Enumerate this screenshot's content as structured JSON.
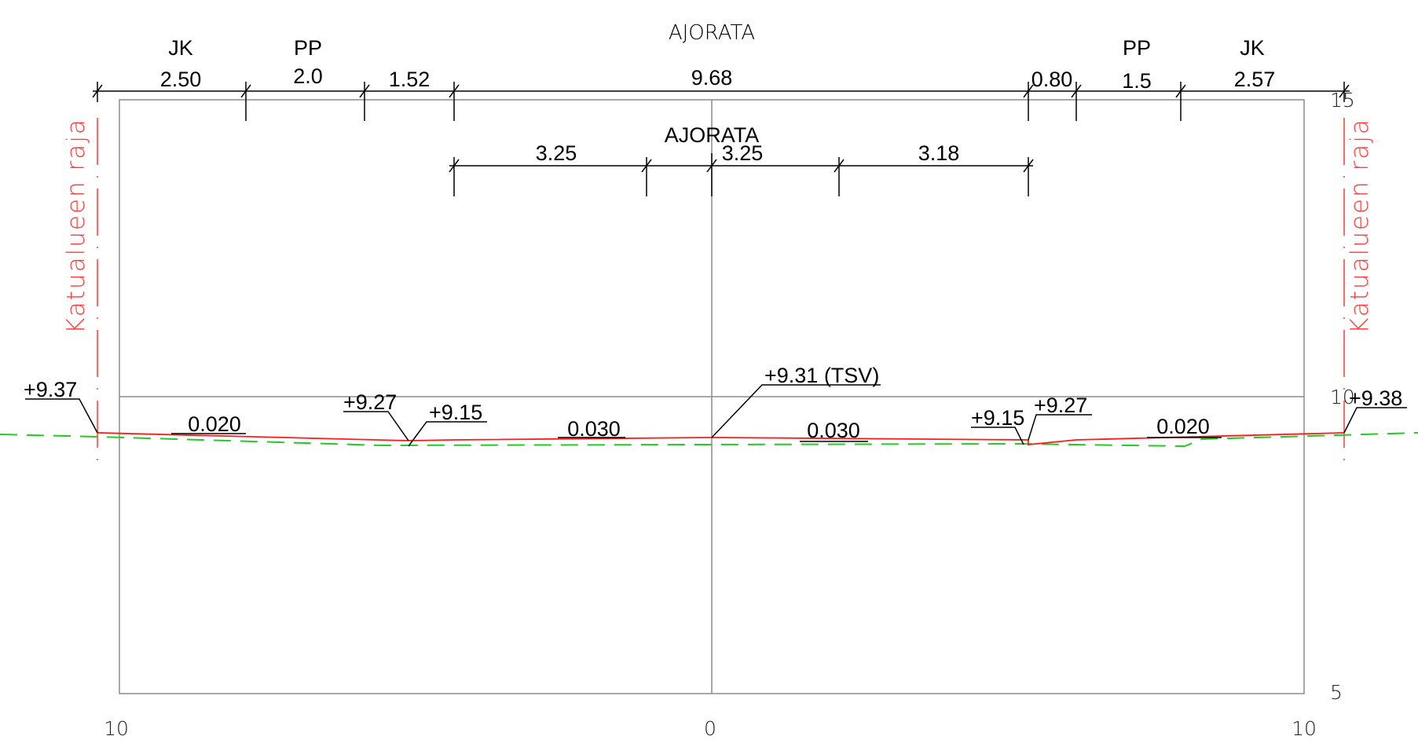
{
  "title": "AJORATA",
  "colors": {
    "frame": "#8c8c8c",
    "dimension": "#000000",
    "design_profile": "#ff1a1a",
    "existing_ground": "#22cc22",
    "boundary": "#ff3b3b"
  },
  "top_dimensions": {
    "section_labels": [
      "JK",
      "PP",
      "PP",
      "JK"
    ],
    "values": [
      "2.50",
      "2.0",
      "1.52",
      "9.68",
      "0.80",
      "1.5",
      "2.57"
    ]
  },
  "lane_dimensions": {
    "label": "AJORATA",
    "values": [
      "3.25",
      "3.25",
      "3.18"
    ]
  },
  "elevations": [
    "+9.37",
    "+9.27",
    "+9.15",
    "+9.31 (TSV)",
    "+9.15",
    "+9.27",
    "+9.38"
  ],
  "slopes": [
    "0.020",
    "0.030",
    "0.030",
    "0.020"
  ],
  "boundary_label": "Katualueen raja",
  "vertical_scale": [
    "15",
    "10",
    "5"
  ],
  "horizontal_scale": [
    "10",
    "0",
    "10"
  ]
}
